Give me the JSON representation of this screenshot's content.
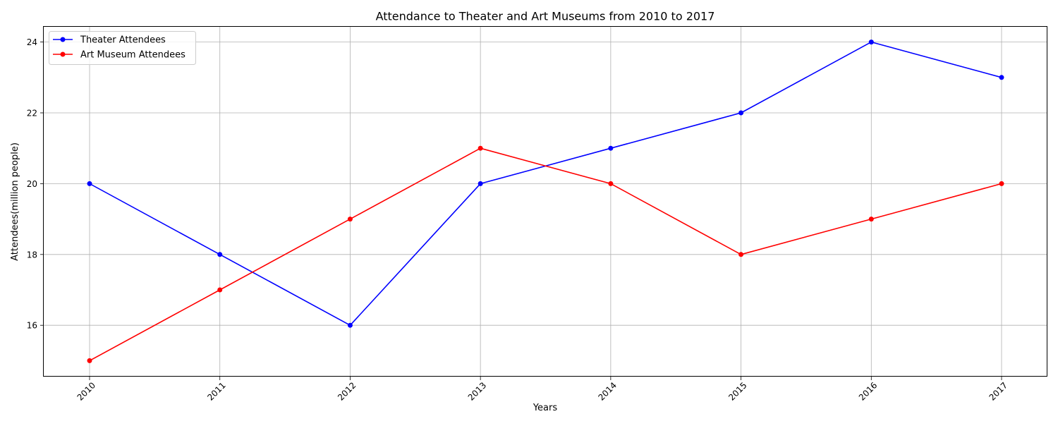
{
  "chart_data": {
    "type": "line",
    "title": "Attendance to Theater and Art Museums from 2010 to 2017",
    "xlabel": "Years",
    "ylabel": "Attendees(million people)",
    "categories": [
      "2010",
      "2011",
      "2012",
      "2013",
      "2014",
      "2015",
      "2016",
      "2017"
    ],
    "yticks": [
      16,
      18,
      20,
      22,
      24
    ],
    "ylim": [
      14.55,
      24.45
    ],
    "grid": true,
    "legend_position": "top-left",
    "series": [
      {
        "name": "Theater Attendees",
        "color": "#0000ff",
        "values": [
          20,
          18,
          16,
          20,
          21,
          22,
          24,
          23
        ]
      },
      {
        "name": "Art Museum Attendees",
        "color": "#ff0000",
        "values": [
          15,
          17,
          19,
          21,
          20,
          18,
          19,
          20
        ]
      }
    ]
  }
}
